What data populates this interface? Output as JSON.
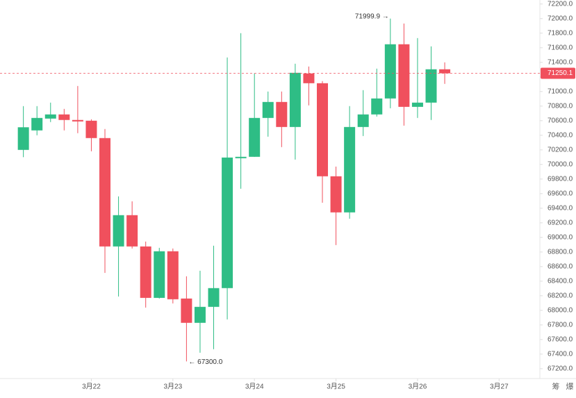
{
  "chart_data": {
    "type": "candlestick",
    "x": [
      0,
      1,
      2,
      3,
      4,
      5,
      6,
      7,
      8,
      9,
      10,
      11,
      12,
      13,
      14,
      15,
      16,
      17,
      18,
      19,
      20,
      21,
      22,
      23,
      24,
      25,
      26,
      27,
      28,
      29,
      30
    ],
    "open": [
      70200,
      70467,
      70629,
      70686,
      70610,
      70600,
      70362,
      68876,
      69305,
      68876,
      68171,
      68810,
      68162,
      67829,
      68048,
      68305,
      70086,
      70105,
      70638,
      70857,
      70514,
      71248,
      71114,
      69838,
      69343,
      70514,
      70686,
      70905,
      71648,
      70790,
      70848
    ],
    "close": [
      70510,
      70638,
      70686,
      70610,
      70590,
      70362,
      68876,
      69305,
      68876,
      68171,
      68810,
      68152,
      67829,
      68048,
      68305,
      70095,
      70105,
      70638,
      70857,
      70514,
      71257,
      71114,
      69838,
      69343,
      70514,
      70686,
      70905,
      71648,
      70790,
      70848,
      71305
    ],
    "high": [
      70800,
      70800,
      70848,
      70762,
      71076,
      70619,
      70486,
      69562,
      69495,
      68943,
      68857,
      68848,
      68467,
      68543,
      68886,
      71467,
      71800,
      71248,
      71000,
      71000,
      71381,
      71343,
      71143,
      69971,
      70800,
      71019,
      71314,
      71999.9,
      71933,
      71733,
      71619
    ],
    "low": [
      70100,
      70400,
      70581,
      70467,
      70429,
      70181,
      68514,
      68190,
      68848,
      68038,
      68162,
      68095,
      67300,
      67419,
      67467,
      67876,
      69667,
      70105,
      70381,
      70238,
      70067,
      70810,
      69476,
      68895,
      69257,
      70390,
      70657,
      70771,
      70533,
      70638,
      70610
    ],
    "last": {
      "open": 71305,
      "close": 71250.1,
      "high": 71400,
      "low": 71105
    },
    "last_price": 71250.1,
    "up_color": "#2ebd85",
    "down_color": "#f0505d",
    "xlim": [
      -1.72,
      38
    ],
    "xticks": [
      {
        "value": 5,
        "label": "3月22"
      },
      {
        "value": 11,
        "label": "3月23"
      },
      {
        "value": 17,
        "label": "3月24"
      },
      {
        "value": 23,
        "label": "3月25"
      },
      {
        "value": 29,
        "label": "3月26"
      },
      {
        "value": 35,
        "label": "3月27"
      }
    ],
    "ylim": [
      67065,
      72255
    ],
    "yticks": [
      {
        "value": 67200,
        "label": "67200.0"
      },
      {
        "value": 67400,
        "label": "67400.0"
      },
      {
        "value": 67600,
        "label": "67600.0"
      },
      {
        "value": 67800,
        "label": "67800.0"
      },
      {
        "value": 68000,
        "label": "68000.0"
      },
      {
        "value": 68200,
        "label": "68200.0"
      },
      {
        "value": 68400,
        "label": "68400.0"
      },
      {
        "value": 68600,
        "label": "68600.0"
      },
      {
        "value": 68800,
        "label": "68800.0"
      },
      {
        "value": 69000,
        "label": "69000.0"
      },
      {
        "value": 69200,
        "label": "69200.0"
      },
      {
        "value": 69400,
        "label": "69400.0"
      },
      {
        "value": 69600,
        "label": "69600.0"
      },
      {
        "value": 69800,
        "label": "69800.0"
      },
      {
        "value": 70000,
        "label": "70000.0"
      },
      {
        "value": 70200,
        "label": "70200.0"
      },
      {
        "value": 70400,
        "label": "70400.0"
      },
      {
        "value": 70600,
        "label": "70600.0"
      },
      {
        "value": 70800,
        "label": "70800.0"
      },
      {
        "value": 71000,
        "label": "71000.0"
      },
      {
        "value": 71200,
        "label": "71200.0"
      },
      {
        "value": 71400,
        "label": "71400.0"
      },
      {
        "value": 71600,
        "label": "71600.0"
      },
      {
        "value": 71800,
        "label": "71800.0"
      },
      {
        "value": 72000,
        "label": "72000.0"
      },
      {
        "value": 72200,
        "label": "72200.0"
      }
    ],
    "annotations": [
      {
        "value": 71999.9,
        "label": "71999.9 →",
        "at": 27
      },
      {
        "value": 67300,
        "label": "← 67300.0",
        "at": 12
      }
    ],
    "toolbar": [
      "筹",
      "爆"
    ]
  }
}
